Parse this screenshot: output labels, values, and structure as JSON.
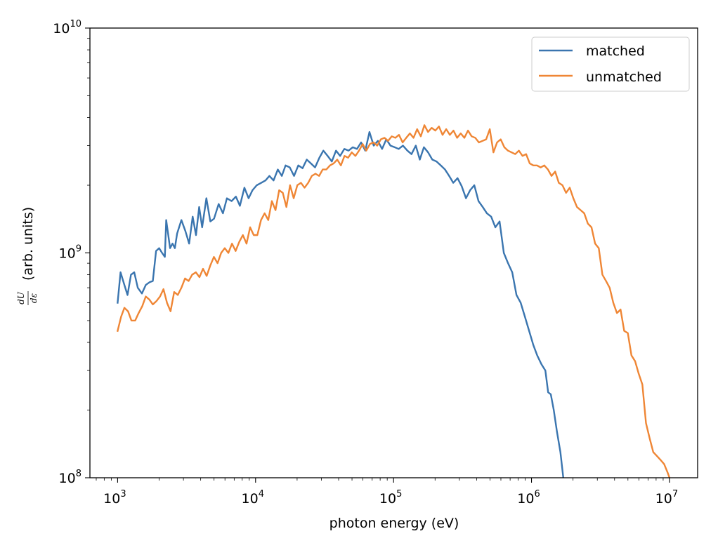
{
  "chart_data": {
    "type": "line",
    "title": "",
    "xlabel": "photon energy (eV)",
    "ylabel_fraction_numerator": "dU",
    "ylabel_fraction_denominator": "dε",
    "ylabel_units": "(arb. units)",
    "xscale": "log",
    "yscale": "log",
    "xlim": [
      630,
      16000000
    ],
    "ylim": [
      100000000,
      10000000000
    ],
    "legend_position": "top-right",
    "x_ticks": [
      {
        "value": 1000,
        "base": "10",
        "exp": "3"
      },
      {
        "value": 10000,
        "base": "10",
        "exp": "4"
      },
      {
        "value": 100000,
        "base": "10",
        "exp": "5"
      },
      {
        "value": 1000000,
        "base": "10",
        "exp": "6"
      },
      {
        "value": 10000000,
        "base": "10",
        "exp": "7"
      }
    ],
    "y_ticks": [
      {
        "value": 100000000,
        "base": "10",
        "exp": "8"
      },
      {
        "value": 1000000000,
        "base": "10",
        "exp": "9"
      },
      {
        "value": 10000000000,
        "base": "10",
        "exp": "10"
      }
    ],
    "series": [
      {
        "name": "matched",
        "color": "#3a75af",
        "points": [
          [
            1000,
            600000000.0
          ],
          [
            1050,
            820000000.0
          ],
          [
            1120,
            720000000.0
          ],
          [
            1180,
            650000000.0
          ],
          [
            1250,
            800000000.0
          ],
          [
            1320,
            820000000.0
          ],
          [
            1400,
            700000000.0
          ],
          [
            1500,
            660000000.0
          ],
          [
            1600,
            720000000.0
          ],
          [
            1700,
            740000000.0
          ],
          [
            1800,
            750000000.0
          ],
          [
            1900,
            1020000000.0
          ],
          [
            2000,
            1050000000.0
          ],
          [
            2100,
            1000000000.0
          ],
          [
            2200,
            960000000.0
          ],
          [
            2250,
            1400000000.0
          ],
          [
            2400,
            1050000000.0
          ],
          [
            2500,
            1100000000.0
          ],
          [
            2600,
            1050000000.0
          ],
          [
            2700,
            1220000000.0
          ],
          [
            2900,
            1400000000.0
          ],
          [
            3100,
            1250000000.0
          ],
          [
            3300,
            1100000000.0
          ],
          [
            3500,
            1450000000.0
          ],
          [
            3700,
            1200000000.0
          ],
          [
            3900,
            1600000000.0
          ],
          [
            4100,
            1300000000.0
          ],
          [
            4400,
            1750000000.0
          ],
          [
            4700,
            1380000000.0
          ],
          [
            5000,
            1420000000.0
          ],
          [
            5400,
            1650000000.0
          ],
          [
            5800,
            1500000000.0
          ],
          [
            6200,
            1750000000.0
          ],
          [
            6700,
            1700000000.0
          ],
          [
            7200,
            1780000000.0
          ],
          [
            7700,
            1620000000.0
          ],
          [
            8300,
            1950000000.0
          ],
          [
            8900,
            1750000000.0
          ],
          [
            9500,
            1900000000.0
          ],
          [
            10200,
            2000000000.0
          ],
          [
            11000,
            2050000000.0
          ],
          [
            11800,
            2100000000.0
          ],
          [
            12600,
            2200000000.0
          ],
          [
            13500,
            2100000000.0
          ],
          [
            14500,
            2350000000.0
          ],
          [
            15500,
            2200000000.0
          ],
          [
            16500,
            2450000000.0
          ],
          [
            17700,
            2400000000.0
          ],
          [
            19000,
            2200000000.0
          ],
          [
            20400,
            2450000000.0
          ],
          [
            21900,
            2380000000.0
          ],
          [
            23500,
            2600000000.0
          ],
          [
            25200,
            2500000000.0
          ],
          [
            27000,
            2400000000.0
          ],
          [
            29000,
            2650000000.0
          ],
          [
            31000,
            2850000000.0
          ],
          [
            33300,
            2700000000.0
          ],
          [
            35700,
            2550000000.0
          ],
          [
            38300,
            2850000000.0
          ],
          [
            41000,
            2700000000.0
          ],
          [
            44000,
            2900000000.0
          ],
          [
            47200,
            2850000000.0
          ],
          [
            50600,
            2950000000.0
          ],
          [
            54300,
            2900000000.0
          ],
          [
            58200,
            3100000000.0
          ],
          [
            62400,
            2850000000.0
          ],
          [
            66900,
            3450000000.0
          ],
          [
            71800,
            3000000000.0
          ],
          [
            77000,
            3150000000.0
          ],
          [
            82600,
            2900000000.0
          ],
          [
            88600,
            3200000000.0
          ],
          [
            95000,
            3000000000.0
          ],
          [
            102000,
            2950000000.0
          ],
          [
            109000,
            2900000000.0
          ],
          [
            117000,
            3000000000.0
          ],
          [
            126000,
            2850000000.0
          ],
          [
            135000,
            2750000000.0
          ],
          [
            145000,
            3000000000.0
          ],
          [
            155000,
            2600000000.0
          ],
          [
            166000,
            2950000000.0
          ],
          [
            178000,
            2800000000.0
          ],
          [
            191000,
            2600000000.0
          ],
          [
            205000,
            2550000000.0
          ],
          [
            220000,
            2450000000.0
          ],
          [
            236000,
            2350000000.0
          ],
          [
            253000,
            2200000000.0
          ],
          [
            271000,
            2050000000.0
          ],
          [
            291000,
            2150000000.0
          ],
          [
            312000,
            1980000000.0
          ],
          [
            335000,
            1750000000.0
          ],
          [
            359000,
            1900000000.0
          ],
          [
            385000,
            2000000000.0
          ],
          [
            413000,
            1700000000.0
          ],
          [
            443000,
            1600000000.0
          ],
          [
            475000,
            1500000000.0
          ],
          [
            510000,
            1450000000.0
          ],
          [
            547000,
            1300000000.0
          ],
          [
            587000,
            1380000000.0
          ],
          [
            630000,
            1000000000.0
          ],
          [
            676000,
            900000000.0
          ],
          [
            725000,
            820000000.0
          ],
          [
            778000,
            650000000.0
          ],
          [
            835000,
            600000000.0
          ],
          [
            896000,
            520000000.0
          ],
          [
            961000,
            450000000.0
          ],
          [
            1030000,
            390000000.0
          ],
          [
            1100000,
            350000000.0
          ],
          [
            1180000,
            320000000.0
          ],
          [
            1260000,
            300000000.0
          ],
          [
            1320000,
            240000000.0
          ],
          [
            1380000,
            235000000.0
          ],
          [
            1450000,
            200000000.0
          ],
          [
            1530000,
            160000000.0
          ],
          [
            1620000,
            130000000.0
          ],
          [
            1700000,
            100000000.0
          ]
        ]
      },
      {
        "name": "unmatched",
        "color": "#ef8635",
        "points": [
          [
            1000,
            450000000.0
          ],
          [
            1060,
            520000000.0
          ],
          [
            1120,
            570000000.0
          ],
          [
            1190,
            550000000.0
          ],
          [
            1260,
            500000000.0
          ],
          [
            1340,
            500000000.0
          ],
          [
            1420,
            540000000.0
          ],
          [
            1510,
            580000000.0
          ],
          [
            1600,
            640000000.0
          ],
          [
            1700,
            620000000.0
          ],
          [
            1800,
            590000000.0
          ],
          [
            1910,
            610000000.0
          ],
          [
            2030,
            640000000.0
          ],
          [
            2150,
            690000000.0
          ],
          [
            2280,
            600000000.0
          ],
          [
            2420,
            550000000.0
          ],
          [
            2570,
            670000000.0
          ],
          [
            2730,
            650000000.0
          ],
          [
            2900,
            700000000.0
          ],
          [
            3080,
            770000000.0
          ],
          [
            3270,
            750000000.0
          ],
          [
            3470,
            800000000.0
          ],
          [
            3690,
            820000000.0
          ],
          [
            3920,
            780000000.0
          ],
          [
            4160,
            850000000.0
          ],
          [
            4420,
            790000000.0
          ],
          [
            4700,
            880000000.0
          ],
          [
            4990,
            960000000.0
          ],
          [
            5300,
            900000000.0
          ],
          [
            5630,
            1000000000.0
          ],
          [
            5980,
            1050000000.0
          ],
          [
            6350,
            1000000000.0
          ],
          [
            6750,
            1100000000.0
          ],
          [
            7170,
            1020000000.0
          ],
          [
            7620,
            1120000000.0
          ],
          [
            8090,
            1200000000.0
          ],
          [
            8600,
            1100000000.0
          ],
          [
            9130,
            1300000000.0
          ],
          [
            9700,
            1200000000.0
          ],
          [
            10300,
            1200000000.0
          ],
          [
            10950,
            1400000000.0
          ],
          [
            11630,
            1500000000.0
          ],
          [
            12360,
            1400000000.0
          ],
          [
            13130,
            1700000000.0
          ],
          [
            13950,
            1550000000.0
          ],
          [
            14820,
            1900000000.0
          ],
          [
            15750,
            1850000000.0
          ],
          [
            16730,
            1600000000.0
          ],
          [
            17780,
            2000000000.0
          ],
          [
            18890,
            1750000000.0
          ],
          [
            20070,
            2000000000.0
          ],
          [
            21320,
            2050000000.0
          ],
          [
            22650,
            1950000000.0
          ],
          [
            24070,
            2050000000.0
          ],
          [
            25570,
            2200000000.0
          ],
          [
            27170,
            2250000000.0
          ],
          [
            28870,
            2200000000.0
          ],
          [
            30670,
            2350000000.0
          ],
          [
            32590,
            2350000000.0
          ],
          [
            34620,
            2450000000.0
          ],
          [
            36790,
            2500000000.0
          ],
          [
            39090,
            2600000000.0
          ],
          [
            41530,
            2450000000.0
          ],
          [
            44120,
            2700000000.0
          ],
          [
            46880,
            2650000000.0
          ],
          [
            49810,
            2800000000.0
          ],
          [
            52920,
            2700000000.0
          ],
          [
            56230,
            2850000000.0
          ],
          [
            59740,
            3050000000.0
          ],
          [
            63470,
            2850000000.0
          ],
          [
            67440,
            3050000000.0
          ],
          [
            71650,
            3100000000.0
          ],
          [
            76130,
            3000000000.0
          ],
          [
            80890,
            3200000000.0
          ],
          [
            85940,
            3250000000.0
          ],
          [
            91310,
            3150000000.0
          ],
          [
            97020,
            3300000000.0
          ],
          [
            103080,
            3250000000.0
          ],
          [
            109520,
            3350000000.0
          ],
          [
            116370,
            3100000000.0
          ],
          [
            123640,
            3250000000.0
          ],
          [
            131370,
            3400000000.0
          ],
          [
            139580,
            3250000000.0
          ],
          [
            148300,
            3550000000.0
          ],
          [
            157570,
            3300000000.0
          ],
          [
            167420,
            3700000000.0
          ],
          [
            177880,
            3450000000.0
          ],
          [
            189000,
            3600000000.0
          ],
          [
            200810,
            3500000000.0
          ],
          [
            213360,
            3650000000.0
          ],
          [
            226700,
            3350000000.0
          ],
          [
            240860,
            3550000000.0
          ],
          [
            255920,
            3350000000.0
          ],
          [
            271910,
            3500000000.0
          ],
          [
            288900,
            3250000000.0
          ],
          [
            306960,
            3400000000.0
          ],
          [
            326140,
            3250000000.0
          ],
          [
            346520,
            3500000000.0
          ],
          [
            368180,
            3300000000.0
          ],
          [
            391190,
            3250000000.0
          ],
          [
            415640,
            3100000000.0
          ],
          [
            441620,
            3150000000.0
          ],
          [
            469220,
            3200000000.0
          ],
          [
            498540,
            3550000000.0
          ],
          [
            529700,
            2800000000.0
          ],
          [
            562810,
            3100000000.0
          ],
          [
            597980,
            3200000000.0
          ],
          [
            635360,
            2950000000.0
          ],
          [
            675070,
            2850000000.0
          ],
          [
            717260,
            2800000000.0
          ],
          [
            762090,
            2750000000.0
          ],
          [
            809720,
            2850000000.0
          ],
          [
            860330,
            2700000000.0
          ],
          [
            914100,
            2750000000.0
          ],
          [
            971230,
            2500000000.0
          ],
          [
            1031930,
            2450000000.0
          ],
          [
            1096430,
            2450000000.0
          ],
          [
            1164950,
            2400000000.0
          ],
          [
            1237760,
            2450000000.0
          ],
          [
            1315120,
            2350000000.0
          ],
          [
            1397320,
            2200000000.0
          ],
          [
            1484650,
            2300000000.0
          ],
          [
            1577440,
            2050000000.0
          ],
          [
            1676030,
            2000000000.0
          ],
          [
            1780780,
            1850000000.0
          ],
          [
            1892080,
            1950000000.0
          ],
          [
            2010330,
            1750000000.0
          ],
          [
            2135980,
            1600000000.0
          ],
          [
            2269480,
            1550000000.0
          ],
          [
            2411310,
            1500000000.0
          ],
          [
            2562010,
            1350000000.0
          ],
          [
            2722140,
            1300000000.0
          ],
          [
            2892270,
            1100000000.0
          ],
          [
            3073040,
            1050000000.0
          ],
          [
            3265100,
            800000000.0
          ],
          [
            3469180,
            750000000.0
          ],
          [
            3686000,
            700000000.0
          ],
          [
            3916370,
            600000000.0
          ],
          [
            4161140,
            540000000.0
          ],
          [
            4421210,
            560000000.0
          ],
          [
            4697540,
            450000000.0
          ],
          [
            4991130,
            440000000.0
          ],
          [
            5303080,
            350000000.0
          ],
          [
            5634520,
            330000000.0
          ],
          [
            5986680,
            290000000.0
          ],
          [
            6360850,
            260000000.0
          ],
          [
            6758400,
            175000000.0
          ],
          [
            7180800,
            150000000.0
          ],
          [
            7629600,
            130000000.0
          ],
          [
            8106450,
            125000000.0
          ],
          [
            8613100,
            120000000.0
          ],
          [
            9151420,
            115000000.0
          ],
          [
            9723380,
            105000000.0
          ],
          [
            10000000,
            100000000.0
          ]
        ]
      }
    ]
  }
}
